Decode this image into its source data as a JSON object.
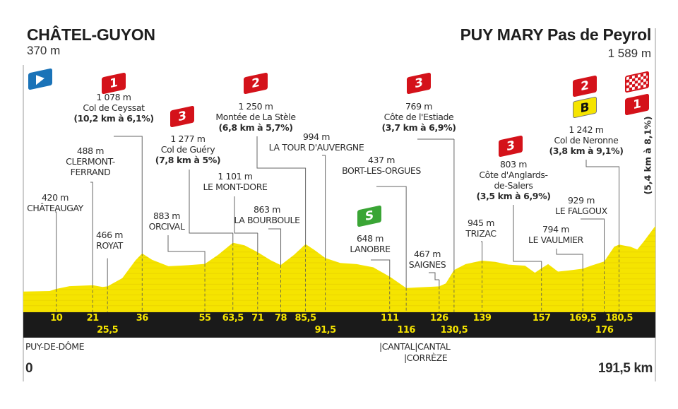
{
  "start": {
    "name": "CHÂTEL-GUYON",
    "altitude": "370 m"
  },
  "finish": {
    "name": "PUY MARY Pas de Peyrol",
    "altitude": "1 589 m",
    "climb_detail": "(5,4 km à 8,1%)",
    "climb_category": "1"
  },
  "colors": {
    "profile": "#f5e400",
    "band": "#1a1a1a",
    "km_text": "#f5e400",
    "kom_flag": "#d4121a",
    "sprint": "#3aa535",
    "start_flag": "#1a73b8",
    "bonus": "#f5e400"
  },
  "icons": {
    "start": "start-flag-icon",
    "finish": "checkered-flag-icon",
    "sprint": "intermediate-sprint-icon",
    "bonus": "bonus-b-icon"
  },
  "bottom": {
    "region_start": "PUY-DE-DÔME",
    "region_mid1": "|CANTAL|CANTAL",
    "region_mid2": "|CORRÈZE",
    "km_start": "0",
    "km_end": "191,5 km"
  },
  "chart_data": {
    "type": "area",
    "title": "",
    "xlabel": "",
    "ylabel": "",
    "xlim": [
      0,
      191.5
    ],
    "ylim": [
      0,
      1650
    ],
    "grid": false,
    "profile": {
      "x": [
        0,
        8,
        10,
        14,
        20,
        21,
        24,
        25.5,
        30,
        34,
        36,
        39,
        44,
        50,
        55,
        59,
        63.5,
        67,
        71,
        75,
        78,
        82,
        85.5,
        88,
        91.5,
        96,
        101,
        106,
        111,
        114,
        116,
        120,
        124,
        126,
        128,
        130.5,
        134,
        139,
        143,
        147,
        152,
        155,
        157,
        159,
        162,
        165,
        169.5,
        172,
        176,
        179,
        180.5,
        184,
        186,
        188,
        191.5
      ],
      "y": [
        370,
        380,
        420,
        470,
        485,
        488,
        455,
        466,
        620,
        950,
        1078,
        960,
        840,
        860,
        883,
        1050,
        1277,
        1230,
        1101,
        950,
        863,
        1050,
        1250,
        1150,
        994,
        900,
        880,
        820,
        648,
        520,
        437,
        450,
        460,
        467,
        520,
        769,
        880,
        945,
        920,
        870,
        850,
        720,
        803,
        880,
        740,
        760,
        794,
        850,
        929,
        1200,
        1242,
        1200,
        1150,
        1300,
        1589
      ]
    },
    "km_markers": [
      "10",
      "21",
      "25,5",
      "36",
      "55",
      "63,5",
      "71",
      "78",
      "85,5",
      "91,5",
      "111",
      "116",
      "126",
      "130,5",
      "139",
      "157",
      "169,5",
      "176",
      "180,5"
    ],
    "points": [
      {
        "km": 10,
        "alt": "420 m",
        "name": "CHÂTEAUGAY"
      },
      {
        "km": 21,
        "alt": "488 m",
        "name": "CLERMONT-",
        "name2": "FERRAND"
      },
      {
        "km": 25.5,
        "alt": "466 m",
        "name": "ROYAT"
      },
      {
        "km": 36,
        "alt": "1 078 m",
        "name": "Col de Ceyssat",
        "detail": "(10,2 km à 6,1%)",
        "category": "1"
      },
      {
        "km": 55,
        "alt": "883 m",
        "name": "ORCIVAL"
      },
      {
        "km": 63.5,
        "alt": "1 277 m",
        "name": "Col de Guéry",
        "detail": "(7,8 km à 5%)",
        "category": "3"
      },
      {
        "km": 71,
        "alt": "1 101 m",
        "name": "LE MONT-DORE"
      },
      {
        "km": 78,
        "alt": "863 m",
        "name": "LA BOURBOULE"
      },
      {
        "km": 85.5,
        "alt": "1 250 m",
        "name": "Montée de La Stèle",
        "detail": "(6,8 km à 5,7%)",
        "category": "2"
      },
      {
        "km": 91.5,
        "alt": "994 m",
        "name": "LA TOUR D'AUVERGNE"
      },
      {
        "km": 111,
        "alt": "648 m",
        "name": "LANOBRE",
        "sprint": "S"
      },
      {
        "km": 116,
        "alt": "437 m",
        "name": "BORT-LES-ORGUES"
      },
      {
        "km": 126,
        "alt": "467 m",
        "name": "SAIGNES"
      },
      {
        "km": 130.5,
        "alt": "769 m",
        "name": "Côte de l'Estiade",
        "detail": "(3,7 km à 6,9%)",
        "category": "3"
      },
      {
        "km": 139,
        "alt": "945 m",
        "name": "TRIZAC"
      },
      {
        "km": 157,
        "alt": "803 m",
        "name": "Côte d'Anglards-",
        "name2": "de-Salers",
        "detail": "(3,5 km à 6,9%)",
        "category": "3"
      },
      {
        "km": 169.5,
        "alt": "794 m",
        "name": "LE VAULMIER"
      },
      {
        "km": 176,
        "alt": "929 m",
        "name": "LE FALGOUX"
      },
      {
        "km": 180.5,
        "alt": "1 242 m",
        "name": "Col de Neronne",
        "detail": "(3,8 km à 9,1%)",
        "category": "2",
        "bonus": "B"
      }
    ]
  }
}
